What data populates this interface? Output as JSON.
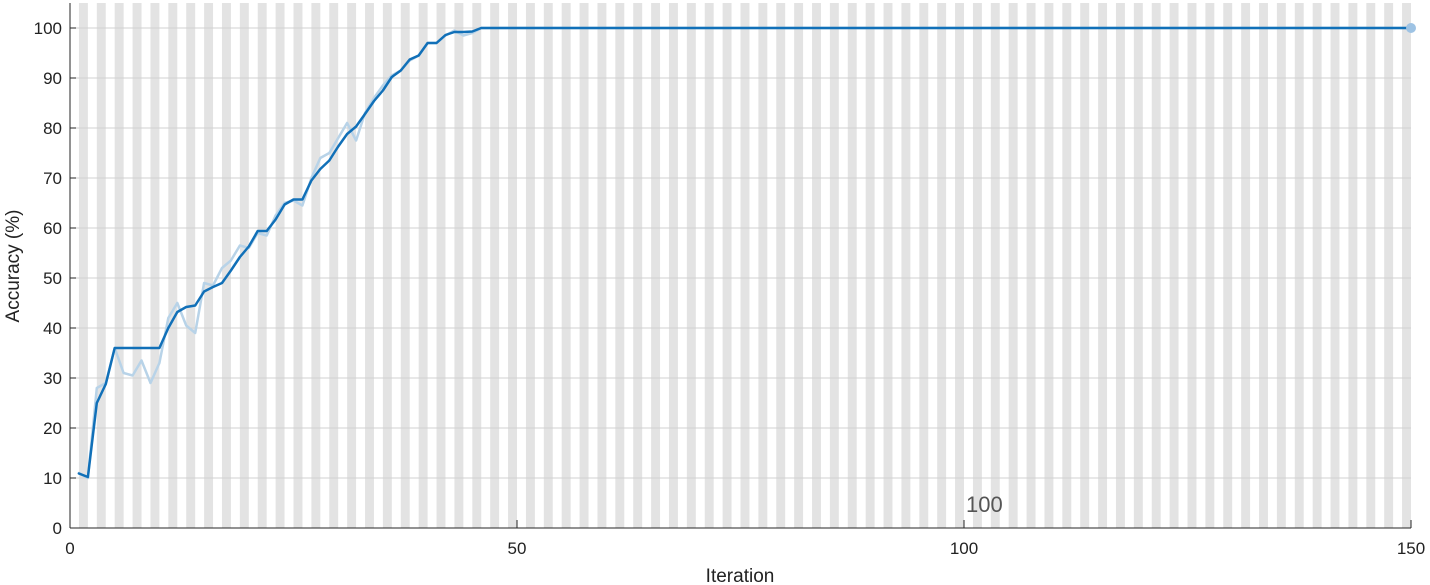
{
  "chart_data": {
    "type": "line",
    "title": "",
    "xlabel": "Iteration",
    "ylabel": "Accuracy (%)",
    "xlim": [
      0,
      150
    ],
    "ylim": [
      0,
      105
    ],
    "xticks": [
      0,
      50,
      100,
      150
    ],
    "yticks": [
      0,
      10,
      20,
      30,
      40,
      50,
      60,
      70,
      80,
      90,
      100
    ],
    "grid": "horizontal",
    "band_style": "alternating gray/white vertical bands, one per iteration",
    "annotations": [
      {
        "text": "100",
        "x": 100
      }
    ],
    "series": [
      {
        "style": "light blue raw line",
        "color": "#b8d3e8",
        "x": [
          1,
          2,
          3,
          4,
          5,
          6,
          7,
          8,
          9,
          10,
          11,
          12,
          13,
          14,
          15,
          16,
          17,
          18,
          19,
          20,
          21,
          22,
          23,
          24,
          25,
          26,
          27,
          28,
          29,
          30,
          31,
          32,
          33,
          34,
          35,
          36,
          37,
          38,
          39,
          40,
          41,
          42,
          43,
          44,
          45,
          46,
          47,
          150
        ],
        "values": [
          11,
          10,
          28,
          29,
          36,
          31,
          30.5,
          33.5,
          29,
          33,
          42,
          45,
          40.5,
          39,
          49,
          48.5,
          52,
          53.5,
          56.5,
          56,
          59,
          58.5,
          62.5,
          65,
          65.5,
          64.5,
          70,
          74,
          75,
          78,
          81,
          77.5,
          83,
          86,
          88.5,
          90.5,
          91.5,
          93.5,
          94.5,
          97,
          97,
          98.5,
          99.5,
          98.5,
          99,
          100,
          100,
          100
        ]
      },
      {
        "style": "dark blue smoothed line",
        "color": "#1170b8",
        "x": [
          1,
          2,
          3,
          4,
          5,
          6,
          7,
          8,
          9,
          10,
          11,
          12,
          13,
          14,
          15,
          16,
          17,
          18,
          19,
          20,
          21,
          22,
          23,
          24,
          25,
          26,
          27,
          28,
          29,
          30,
          31,
          32,
          33,
          34,
          35,
          36,
          37,
          38,
          39,
          40,
          41,
          42,
          43,
          44,
          45,
          46,
          47,
          150
        ],
        "values": [
          10.9,
          10.2,
          25,
          28.8,
          36,
          36,
          36,
          36,
          36,
          36,
          40,
          43.2,
          44.2,
          44.5,
          47.3,
          48.2,
          49,
          51.5,
          54.2,
          56.3,
          59.4,
          59.4,
          61.7,
          64.7,
          65.7,
          65.7,
          69.5,
          71.8,
          73.5,
          76.3,
          78.8,
          80.3,
          82.8,
          85.4,
          87.5,
          90.2,
          91.5,
          93.7,
          94.5,
          97,
          97,
          98.6,
          99.2,
          99.2,
          99.3,
          100,
          100,
          100
        ]
      }
    ]
  }
}
